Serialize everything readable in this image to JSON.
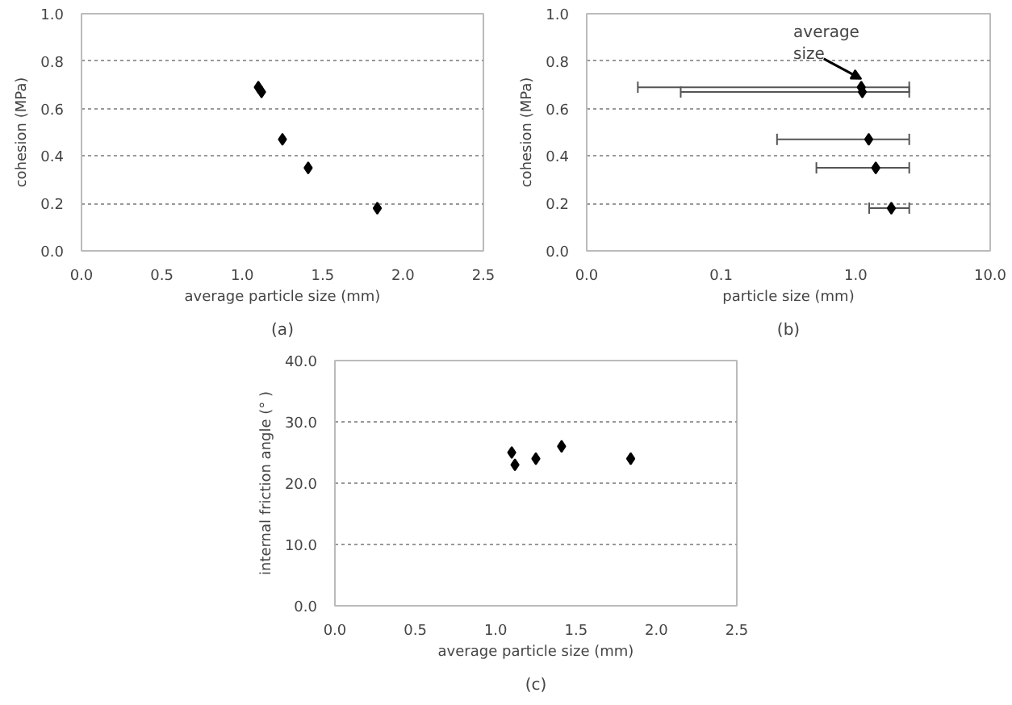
{
  "chart_data": [
    {
      "type": "scatter",
      "xlabel": "average particle size (mm)",
      "ylabel": "cohesion (MPa)",
      "x": [
        1.1,
        1.12,
        1.25,
        1.41,
        1.84
      ],
      "series": [
        {
          "color": "#000000",
          "values": [
            0.69,
            0.67,
            0.47,
            0.35,
            0.18
          ]
        }
      ],
      "xlim": [
        0,
        2.5
      ],
      "xticks": [
        {
          "value": 0,
          "label": "0.0"
        },
        0.5,
        {
          "value": 1,
          "label": "1.0"
        },
        1.5,
        {
          "value": 2,
          "label": "2.0"
        },
        2.5
      ],
      "ylim": [
        0,
        1
      ],
      "yticks": [
        {
          "value": 0,
          "label": "0.0"
        },
        0.2,
        0.4,
        0.6,
        0.8,
        {
          "value": 1,
          "label": "1.0"
        }
      ],
      "grid": "y",
      "marker": "diamond",
      "annotations": [
        "(a)"
      ]
    },
    {
      "type": "scatter",
      "xlabel": "particle size (mm)",
      "ylabel": "cohesion (MPa)",
      "x": [
        1.1,
        1.12,
        1.25,
        1.41,
        1.84
      ],
      "series": [
        {
          "color": "#000000",
          "values": [
            0.69,
            0.67,
            0.47,
            0.35,
            0.18
          ],
          "xerrors": [
            [
              0.024,
              2.5
            ],
            [
              0.05,
              2.5
            ],
            [
              0.26,
              2.5
            ],
            [
              0.51,
              2.5
            ],
            [
              1.26,
              2.5
            ]
          ]
        }
      ],
      "log": "x",
      "xlim": [
        0.01,
        10
      ],
      "xticks": [
        {
          "value": 0.01,
          "label": "0.0"
        },
        0.1,
        {
          "value": 1,
          "label": "1.0"
        },
        {
          "value": 10,
          "label": "10.0"
        }
      ],
      "ylim": [
        0,
        1
      ],
      "yticks": [
        {
          "value": 0,
          "label": "0.0"
        },
        0.2,
        0.4,
        0.6,
        0.8,
        {
          "value": 1,
          "label": "1.0"
        }
      ],
      "grid": "y",
      "marker": "diamond",
      "annotations": [
        {
          "text": "average\nsize",
          "x": 1.1,
          "y": 0.69
        },
        "(b)"
      ]
    },
    {
      "type": "scatter",
      "xlabel": "average particle size (mm)",
      "ylabel": "internal friction angle (° )",
      "x": [
        1.1,
        1.12,
        1.25,
        1.41,
        1.84
      ],
      "series": [
        {
          "color": "#000000",
          "values": [
            25.0,
            23.0,
            24.0,
            26.0,
            24.0
          ]
        }
      ],
      "xlim": [
        0,
        2.5
      ],
      "xticks": [
        {
          "value": 0,
          "label": "0.0"
        },
        0.5,
        {
          "value": 1,
          "label": "1.0"
        },
        1.5,
        {
          "value": 2,
          "label": "2.0"
        },
        2.5
      ],
      "ylim": [
        0,
        40
      ],
      "yticks": [
        {
          "value": 0,
          "label": "0.0"
        },
        {
          "value": 10,
          "label": "10.0"
        },
        {
          "value": 20,
          "label": "20.0"
        },
        {
          "value": 30,
          "label": "30.0"
        },
        {
          "value": 40,
          "label": "40.0"
        }
      ],
      "grid": "y",
      "marker": "diamond",
      "annotations": [
        "(c)"
      ]
    }
  ]
}
